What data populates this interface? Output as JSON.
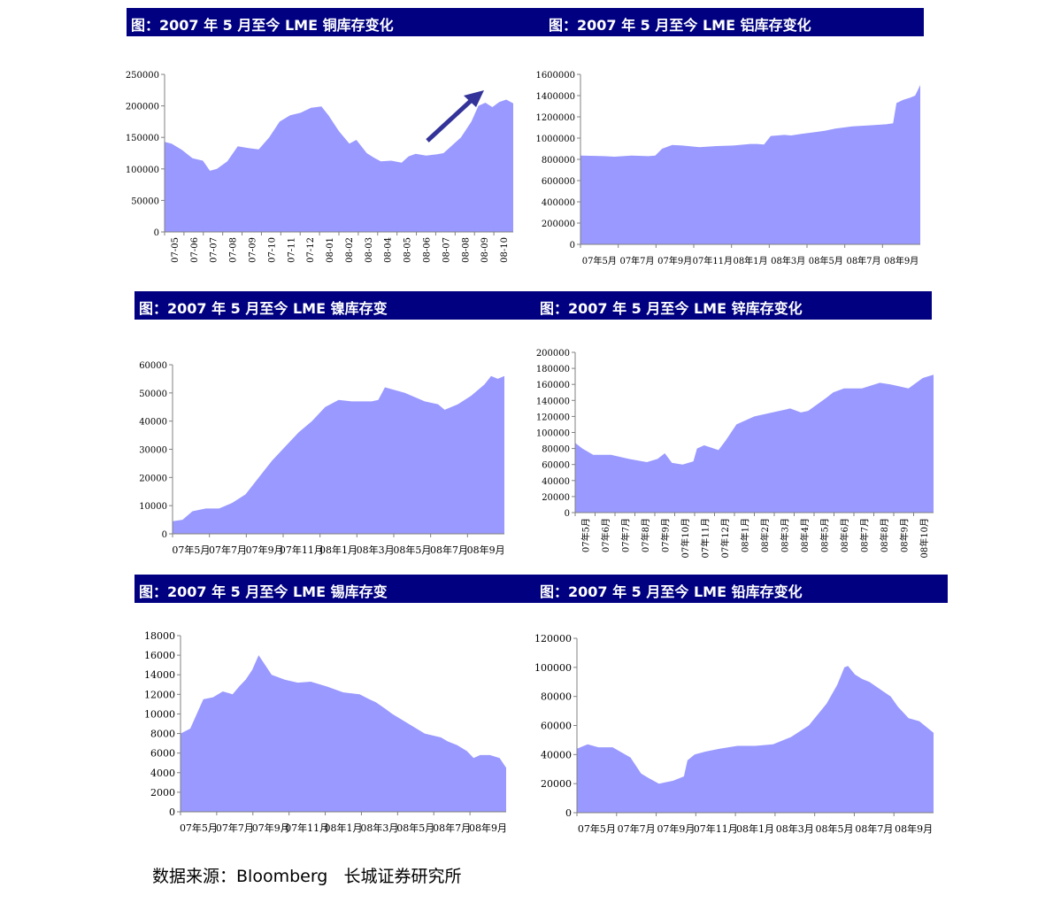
{
  "titles": [
    "图：2007 年 5 月至今 LME 铜库存变化",
    "图：2007 年 5 月至今 LME 铝库存变化",
    "图：2007 年 5 月至今 LME 镍库存变",
    "图：2007 年 5 月至今 LME 锌库存变化",
    "图：2007 年 5 月至今 LME 锡库存变",
    "图：2007 年 5 月至今 LME 铅库存变化"
  ],
  "source": "数据来源：Bloomberg   长城证券研究所",
  "colors": {
    "banner": "#000080",
    "fill": "#9999FF",
    "arrow": "#333399",
    "axis": "#808080"
  },
  "chart_data": [
    {
      "id": "copper",
      "type": "area",
      "title": "图：2007 年 5 月至今 LME 铜库存变化",
      "ylim": [
        0,
        250000
      ],
      "yticks": [
        0,
        50000,
        100000,
        150000,
        200000,
        250000
      ],
      "ytick_labels": [
        "0",
        "50000",
        "100000",
        "150000",
        "200000",
        "250000"
      ],
      "xtick_labels": [
        "07-05",
        "07-06",
        "07-07",
        "07-08",
        "07-09",
        "07-10",
        "07-11",
        "07-12",
        "08-01",
        "08-02",
        "08-03",
        "08-04",
        "08-05",
        "08-06",
        "08-07",
        "08-08",
        "08-09",
        "08-10"
      ],
      "xlabel_rotated": true,
      "annotation": "upward arrow",
      "x": [
        0,
        0.02,
        0.05,
        0.08,
        0.11,
        0.13,
        0.15,
        0.18,
        0.21,
        0.24,
        0.27,
        0.3,
        0.33,
        0.36,
        0.39,
        0.42,
        0.45,
        0.47,
        0.5,
        0.53,
        0.55,
        0.58,
        0.6,
        0.62,
        0.65,
        0.68,
        0.7,
        0.72,
        0.75,
        0.78,
        0.8,
        0.82,
        0.85,
        0.88,
        0.9,
        0.92,
        0.94,
        0.96,
        0.98,
        1
      ],
      "values": [
        143000,
        140000,
        130000,
        117000,
        113000,
        97000,
        100000,
        112000,
        136000,
        133000,
        131000,
        150000,
        175000,
        185000,
        189000,
        197000,
        199000,
        185000,
        160000,
        140000,
        146000,
        125000,
        118000,
        112000,
        113000,
        110000,
        120000,
        124000,
        121000,
        123000,
        125000,
        135000,
        150000,
        175000,
        200000,
        205000,
        198000,
        206000,
        210000,
        204000
      ]
    },
    {
      "id": "aluminium",
      "type": "area",
      "title": "图：2007 年 5 月至今 LME 铝库存变化",
      "ylim": [
        0,
        1600000
      ],
      "yticks": [
        0,
        200000,
        400000,
        600000,
        800000,
        1000000,
        1200000,
        1400000,
        1600000
      ],
      "ytick_labels": [
        "0",
        "200000",
        "400000",
        "600000",
        "800000",
        "1000000",
        "1200000",
        "1400000",
        "1600000"
      ],
      "xtick_labels": [
        "07年5月",
        "07年7月",
        "07年9月",
        "07年11月",
        "08年1月",
        "08年3月",
        "08年5月",
        "08年7月",
        "08年9月"
      ],
      "x": [
        0,
        0.07,
        0.1,
        0.15,
        0.2,
        0.22,
        0.24,
        0.27,
        0.3,
        0.35,
        0.4,
        0.45,
        0.5,
        0.52,
        0.54,
        0.56,
        0.6,
        0.62,
        0.65,
        0.7,
        0.72,
        0.75,
        0.8,
        0.85,
        0.9,
        0.92,
        0.93,
        0.95,
        0.97,
        0.985,
        1
      ],
      "values": [
        835000,
        830000,
        825000,
        835000,
        830000,
        835000,
        900000,
        935000,
        930000,
        915000,
        925000,
        930000,
        945000,
        945000,
        940000,
        1020000,
        1030000,
        1025000,
        1040000,
        1060000,
        1070000,
        1090000,
        1110000,
        1120000,
        1130000,
        1140000,
        1330000,
        1360000,
        1380000,
        1400000,
        1500000
      ]
    },
    {
      "id": "nickel",
      "type": "area",
      "title": "图：2007 年 5 月至今 LME 镍库存变",
      "ylim": [
        0,
        60000
      ],
      "yticks": [
        0,
        10000,
        20000,
        30000,
        40000,
        50000,
        60000
      ],
      "ytick_labels": [
        "0",
        "10000",
        "20000",
        "30000",
        "40000",
        "50000",
        "60000"
      ],
      "xtick_labels": [
        "07年5月",
        "07年7月",
        "07年9月",
        "07年11月",
        "08年1月",
        "08年3月",
        "08年5月",
        "08年7月",
        "08年9月"
      ],
      "x": [
        0,
        0.03,
        0.06,
        0.1,
        0.14,
        0.18,
        0.22,
        0.26,
        0.3,
        0.34,
        0.38,
        0.42,
        0.46,
        0.5,
        0.54,
        0.58,
        0.6,
        0.62,
        0.64,
        0.7,
        0.76,
        0.8,
        0.82,
        0.86,
        0.9,
        0.94,
        0.96,
        0.98,
        1
      ],
      "values": [
        4500,
        5000,
        8000,
        9000,
        9000,
        11000,
        14000,
        20000,
        26000,
        31000,
        36000,
        40000,
        45000,
        47500,
        47000,
        47000,
        47000,
        47500,
        52000,
        50000,
        47000,
        46000,
        44000,
        46000,
        49000,
        53000,
        56000,
        55000,
        56000
      ]
    },
    {
      "id": "zinc",
      "type": "area",
      "title": "图：2007 年 5 月至今 LME 锌库存变化",
      "ylim": [
        0,
        200000
      ],
      "yticks": [
        0,
        20000,
        40000,
        60000,
        80000,
        100000,
        120000,
        140000,
        160000,
        180000,
        200000
      ],
      "ytick_labels": [
        "0",
        "20000",
        "40000",
        "60000",
        "80000",
        "100000",
        "120000",
        "140000",
        "160000",
        "180000",
        "200000"
      ],
      "xtick_labels": [
        "07年5月",
        "07年6月",
        "07年7月",
        "07年8月",
        "07年9月",
        "07年10月",
        "07年11月",
        "07年12月",
        "08年1月",
        "08年2月",
        "08年3月",
        "08年4月",
        "08年5月",
        "08年6月",
        "08年7月",
        "08年8月",
        "08年9月",
        "08年10月"
      ],
      "xlabel_rotated": true,
      "x": [
        0,
        0.02,
        0.05,
        0.1,
        0.15,
        0.2,
        0.23,
        0.25,
        0.27,
        0.3,
        0.33,
        0.34,
        0.36,
        0.4,
        0.42,
        0.45,
        0.5,
        0.55,
        0.6,
        0.63,
        0.65,
        0.7,
        0.72,
        0.75,
        0.8,
        0.85,
        0.88,
        0.9,
        0.93,
        0.97,
        1
      ],
      "values": [
        87000,
        80000,
        72000,
        72000,
        67000,
        63000,
        67000,
        74000,
        62000,
        60000,
        64000,
        80000,
        84000,
        78000,
        90000,
        110000,
        120000,
        125000,
        130000,
        125000,
        127000,
        143000,
        150000,
        155000,
        155000,
        162000,
        160000,
        158000,
        155000,
        168000,
        172000
      ]
    },
    {
      "id": "tin",
      "type": "area",
      "title": "图：2007 年 5 月至今 LME 锡库存变",
      "ylim": [
        0,
        18000
      ],
      "yticks": [
        0,
        2000,
        4000,
        6000,
        8000,
        10000,
        12000,
        14000,
        16000,
        18000
      ],
      "ytick_labels": [
        "0",
        "2000",
        "4000",
        "6000",
        "8000",
        "10000",
        "12000",
        "14000",
        "16000",
        "18000"
      ],
      "xtick_labels": [
        "07年5月",
        "07年7月",
        "07年9月",
        "07年11月",
        "08年1月",
        "08年3月",
        "08年5月",
        "08年7月",
        "08年9月"
      ],
      "x": [
        0,
        0.03,
        0.05,
        0.07,
        0.1,
        0.13,
        0.16,
        0.18,
        0.2,
        0.22,
        0.24,
        0.26,
        0.28,
        0.32,
        0.36,
        0.4,
        0.45,
        0.5,
        0.55,
        0.58,
        0.6,
        0.63,
        0.65,
        0.7,
        0.75,
        0.8,
        0.82,
        0.85,
        0.88,
        0.9,
        0.92,
        0.95,
        0.98,
        1
      ],
      "values": [
        8000,
        8500,
        10000,
        11500,
        11700,
        12300,
        12000,
        12800,
        13500,
        14500,
        16000,
        15000,
        14000,
        13500,
        13200,
        13300,
        12800,
        12200,
        12000,
        11500,
        11200,
        10500,
        10000,
        9000,
        8000,
        7600,
        7200,
        6800,
        6200,
        5500,
        5800,
        5800,
        5500,
        4500
      ]
    },
    {
      "id": "lead",
      "type": "area",
      "title": "图：2007 年 5 月至今 LME 铅库存变化",
      "ylim": [
        0,
        120000
      ],
      "yticks": [
        0,
        20000,
        40000,
        60000,
        80000,
        100000,
        120000
      ],
      "ytick_labels": [
        "0",
        "20000",
        "40000",
        "60000",
        "80000",
        "100000",
        "120000"
      ],
      "xtick_labels": [
        "07年5月",
        "07年7月",
        "07年9月",
        "07年11月",
        "08年1月",
        "08年3月",
        "08年5月",
        "08年7月",
        "08年9月"
      ],
      "x": [
        0,
        0.03,
        0.06,
        0.1,
        0.15,
        0.18,
        0.2,
        0.23,
        0.25,
        0.27,
        0.3,
        0.31,
        0.33,
        0.36,
        0.4,
        0.45,
        0.5,
        0.55,
        0.6,
        0.65,
        0.7,
        0.73,
        0.75,
        0.76,
        0.78,
        0.8,
        0.82,
        0.85,
        0.88,
        0.9,
        0.93,
        0.96,
        1
      ],
      "values": [
        44000,
        47000,
        45000,
        45000,
        38000,
        27000,
        24000,
        20000,
        21000,
        22000,
        25000,
        36000,
        40000,
        42000,
        44000,
        46000,
        46000,
        47000,
        52000,
        60000,
        75000,
        88000,
        100000,
        101000,
        95000,
        92000,
        90000,
        85000,
        80000,
        73000,
        65000,
        63000,
        55000
      ]
    }
  ]
}
